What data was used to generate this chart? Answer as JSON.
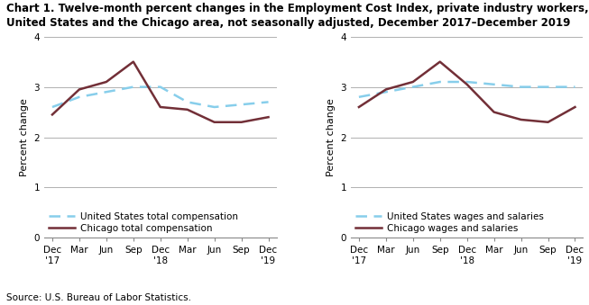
{
  "title_line1": "Chart 1. Twelve-month percent changes in the Employment Cost Index, private industry workers,",
  "title_line2": "United States and the Chicago area, not seasonally adjusted, December 2017–December 2019",
  "source": "Source: U.S. Bureau of Labor Statistics.",
  "x_labels": [
    "Dec\n'17",
    "Mar",
    "Jun",
    "Sep",
    "Dec\n'18",
    "Mar",
    "Jun",
    "Sep",
    "Dec\n'19"
  ],
  "chart1": {
    "us_total": [
      2.6,
      2.8,
      2.9,
      3.0,
      3.0,
      2.7,
      2.6,
      2.65,
      2.7
    ],
    "chicago_total": [
      2.45,
      2.95,
      3.1,
      3.5,
      2.6,
      2.55,
      2.3,
      2.3,
      2.4
    ],
    "legend1": "United States total compensation",
    "legend2": "Chicago total compensation"
  },
  "chart2": {
    "us_wages": [
      2.8,
      2.9,
      3.0,
      3.1,
      3.1,
      3.05,
      3.0,
      3.0,
      3.0
    ],
    "chicago_wages": [
      2.6,
      2.95,
      3.1,
      3.5,
      3.05,
      2.5,
      2.35,
      2.3,
      2.6
    ],
    "legend1": "United States wages and salaries",
    "legend2": "Chicago wages and salaries"
  },
  "ylabel": "Percent change",
  "ylim": [
    0.0,
    4.0
  ],
  "yticks": [
    0.0,
    1.0,
    2.0,
    3.0,
    4.0
  ],
  "us_color": "#87CEEB",
  "chicago_color": "#722F37",
  "linewidth": 1.8,
  "title_fontsize": 8.5,
  "axis_label_fontsize": 8,
  "tick_fontsize": 7.5,
  "legend_fontsize": 7.5,
  "source_fontsize": 7.5,
  "background_color": "#ffffff"
}
